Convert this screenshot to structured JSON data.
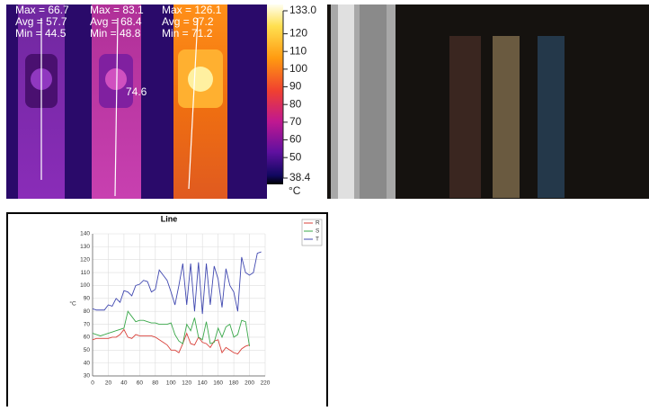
{
  "thermal_image": {
    "readouts": [
      [
        "Max = 66.7",
        "Avg = 57.7",
        "Min = 44.5"
      ],
      [
        "Max = 83.1",
        "Avg = 68.4",
        "Min = 48.8"
      ],
      [
        "Max = 126.1",
        "Avg = 97.2",
        "Min = 71.2"
      ]
    ],
    "spot": "74.6",
    "scale": {
      "lim": [
        38.4,
        133.0
      ],
      "ticks": [
        {
          "value": 133.0,
          "label": "133.0"
        },
        120,
        110,
        100,
        90,
        80,
        70,
        60,
        50,
        38.4
      ],
      "unit": "°C"
    }
  },
  "chart_data": {
    "type": "line",
    "title": "Line",
    "y_label": "°C",
    "x": [
      0,
      5,
      10,
      15,
      20,
      25,
      30,
      35,
      40,
      45,
      50,
      55,
      60,
      65,
      70,
      75,
      80,
      85,
      90,
      95,
      100,
      105,
      110,
      115,
      120,
      125,
      130,
      135,
      140,
      145,
      150,
      155,
      160,
      165,
      170,
      175,
      180,
      185,
      190,
      195,
      200,
      205,
      210,
      215
    ],
    "series": [
      {
        "name": "R",
        "color": "#d9413a",
        "values": [
          58,
          59,
          59,
          59,
          59,
          60,
          60,
          62,
          66,
          60,
          59,
          62,
          61,
          61,
          61,
          61,
          60,
          58,
          56,
          54,
          50,
          50,
          48,
          55,
          63,
          55,
          54,
          60,
          56,
          55,
          52,
          57,
          58,
          48,
          52,
          50,
          48,
          47,
          51,
          53,
          54,
          null,
          null,
          null
        ]
      },
      {
        "name": "S",
        "color": "#3aa84a",
        "values": [
          63,
          62,
          61,
          62,
          63,
          64,
          65,
          66,
          67,
          80,
          76,
          72,
          73,
          73,
          72,
          71,
          71,
          70,
          70,
          70,
          71,
          62,
          57,
          55,
          70,
          65,
          75,
          60,
          58,
          72,
          55,
          56,
          67,
          60,
          68,
          70,
          60,
          62,
          73,
          72,
          53,
          null,
          null,
          null
        ]
      },
      {
        "name": "T",
        "color": "#4048b0",
        "values": [
          82,
          81,
          81,
          81,
          85,
          84,
          90,
          87,
          96,
          95,
          92,
          100,
          101,
          104,
          103,
          95,
          97,
          112,
          108,
          104,
          95,
          85,
          100,
          117,
          85,
          117,
          80,
          118,
          78,
          117,
          85,
          115,
          105,
          83,
          113,
          100,
          95,
          80,
          122,
          110,
          108,
          110,
          125,
          126
        ]
      }
    ],
    "xlim": [
      0,
      220
    ],
    "xticks": [
      0,
      20,
      40,
      60,
      80,
      100,
      120,
      140,
      160,
      180,
      200,
      220
    ],
    "ylim": [
      30,
      140
    ],
    "yticks": [
      30,
      40,
      50,
      60,
      70,
      80,
      90,
      100,
      110,
      120,
      130,
      140
    ],
    "grid": true
  }
}
